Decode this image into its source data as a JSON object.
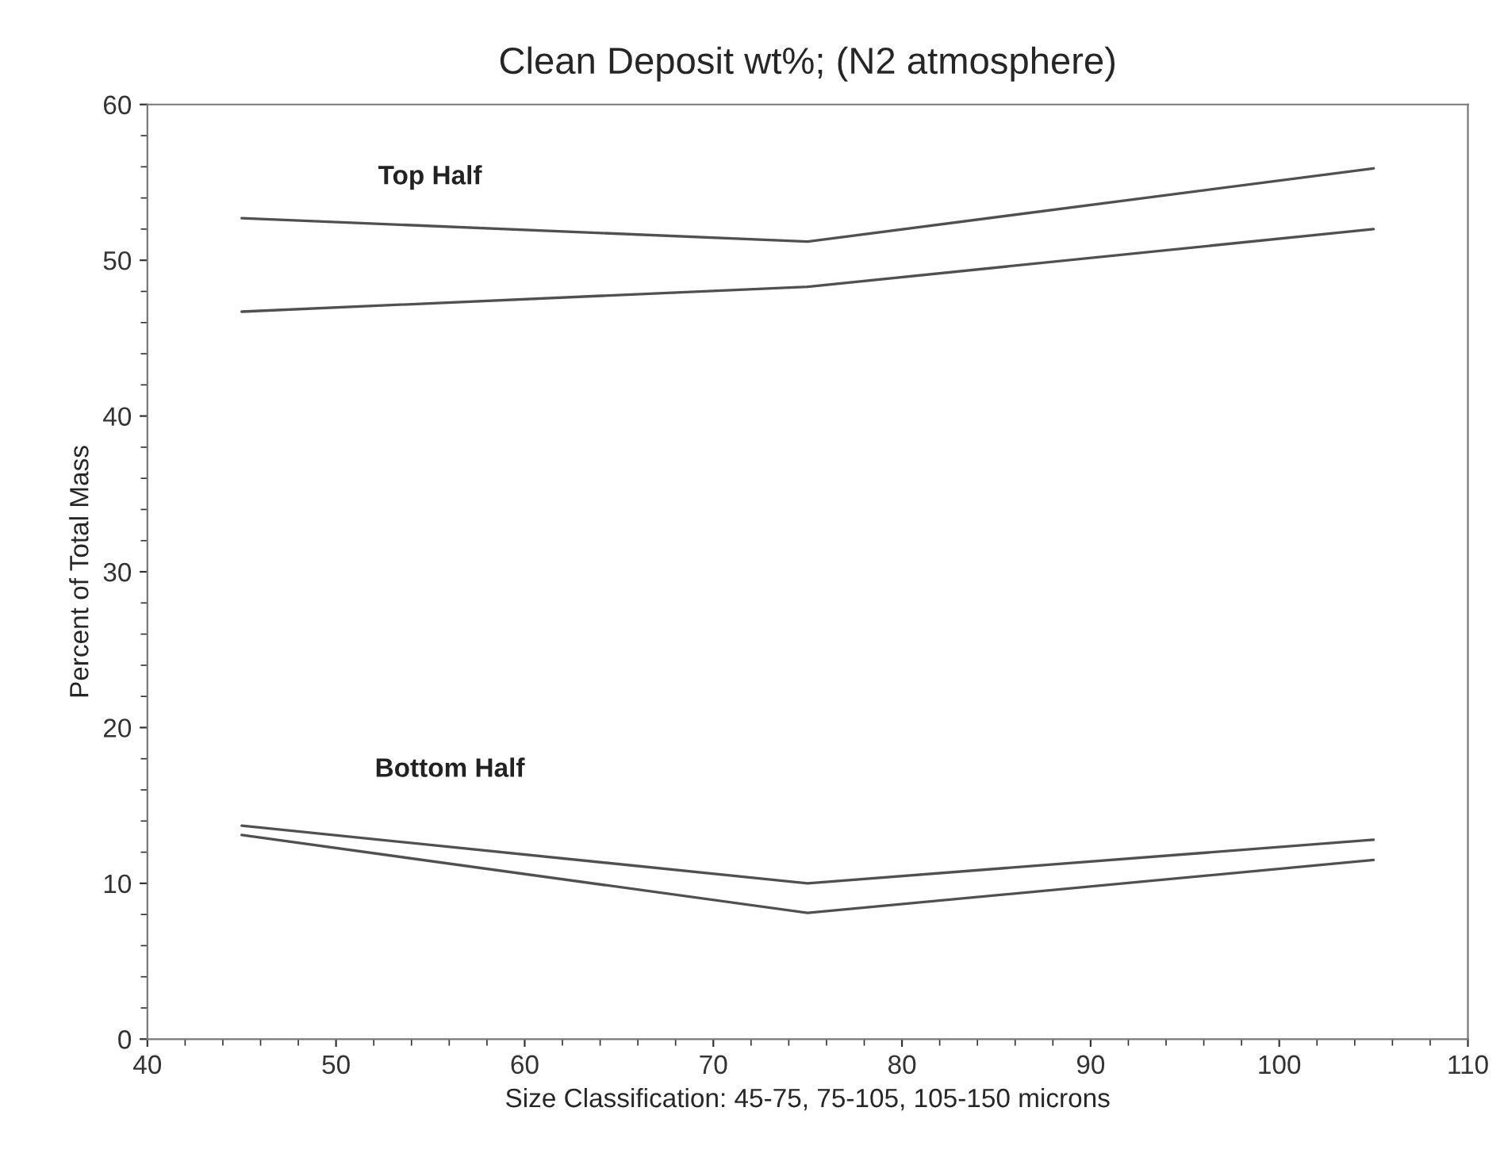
{
  "chart_data": {
    "type": "line",
    "title": "Clean Deposit wt%; (N2 atmosphere)",
    "xlabel": "Size Classification: 45-75, 75-105, 105-150 microns",
    "ylabel": "Percent of Total Mass",
    "x": [
      45,
      75,
      105
    ],
    "series": [
      {
        "color": "#505050",
        "values": [
          52.7,
          51.2,
          55.9
        ]
      },
      {
        "color": "#505050",
        "values": [
          46.7,
          48.3,
          52.0
        ]
      },
      {
        "color": "#505050",
        "values": [
          13.7,
          10.0,
          12.8
        ]
      },
      {
        "color": "#505050",
        "values": [
          13.1,
          8.1,
          11.5
        ]
      }
    ],
    "annotations": [
      "Top Half",
      "Bottom Half"
    ],
    "xlim": [
      40,
      110
    ],
    "xticks": [
      40,
      50,
      60,
      70,
      80,
      90,
      100,
      110
    ],
    "ylim": [
      0,
      60
    ],
    "yticks": [
      0,
      10,
      20,
      30,
      40,
      50,
      60
    ],
    "grid": false,
    "legend": false,
    "marker": "none",
    "line_style": "solid"
  }
}
